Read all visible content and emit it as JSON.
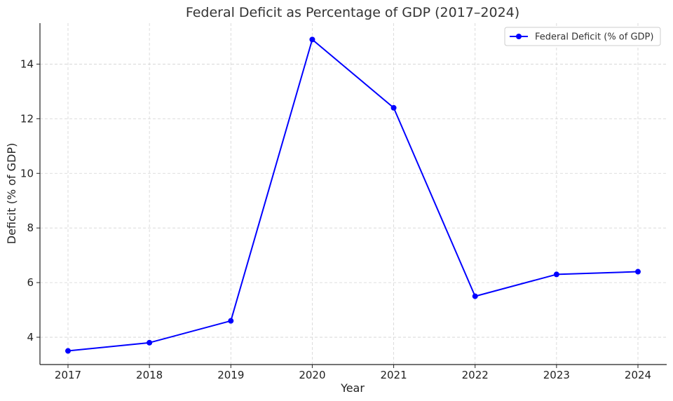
{
  "chart_data": {
    "type": "line",
    "title": "Federal Deficit as Percentage of GDP (2017–2024)",
    "xlabel": "Year",
    "ylabel": "Deficit (% of GDP)",
    "x": [
      "2017",
      "2018",
      "2019",
      "2020",
      "2021",
      "2022",
      "2023",
      "2024"
    ],
    "series": [
      {
        "name": "Federal Deficit (% of GDP)",
        "values": [
          3.5,
          3.8,
          4.6,
          14.9,
          12.4,
          5.5,
          6.3,
          6.4
        ],
        "color": "#0000ff",
        "marker": "circle"
      }
    ],
    "ylim": [
      3.0,
      15.5
    ],
    "yticks": [
      4,
      6,
      8,
      10,
      12,
      14
    ],
    "grid": true,
    "legend_position": "top-right"
  }
}
